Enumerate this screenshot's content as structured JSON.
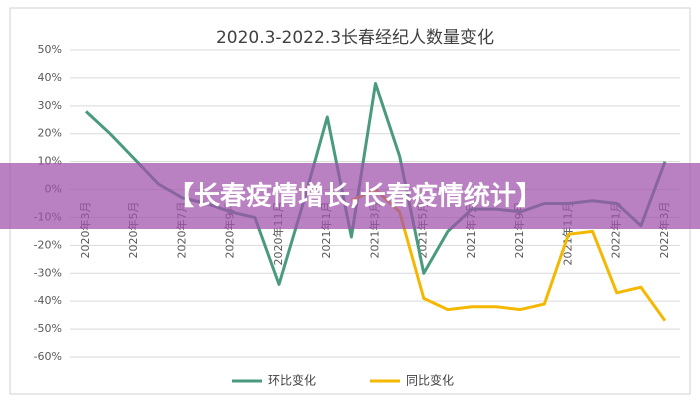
{
  "chart_data": {
    "type": "line",
    "title": "2020.3-2022.3长春经纪人数量变化",
    "categories": [
      "2020年3月",
      null,
      "2020年5月",
      null,
      "2020年7月",
      null,
      "2020年9月",
      null,
      "2020年11月",
      null,
      "2021年1月",
      null,
      "2021年3月",
      null,
      "2021年5月",
      null,
      "2021年7月",
      null,
      "2021年9月",
      null,
      "2021年11月",
      null,
      "2022年1月",
      null,
      "2022年3月"
    ],
    "series": [
      {
        "name": "环比变化",
        "color": "#4a9a7e",
        "values": [
          28,
          20,
          11,
          2,
          -3,
          -5,
          -8,
          -10,
          -34,
          -5,
          26,
          -17,
          38,
          12,
          -30,
          -15,
          -7,
          -7,
          -8,
          -5,
          -5,
          -4,
          -5,
          -13,
          10
        ]
      },
      {
        "name": "同比变化",
        "color": "#f5b800",
        "values": [
          null,
          null,
          null,
          null,
          null,
          null,
          null,
          null,
          null,
          null,
          null,
          -4,
          0,
          -8,
          -39,
          -43,
          -42,
          -42,
          -43,
          -41,
          -16,
          -15,
          -37,
          -35,
          -47
        ]
      }
    ],
    "ylim": [
      -60,
      50
    ],
    "yticks": [
      {
        "value": -60,
        "label": "-60%"
      },
      {
        "value": -50,
        "label": "-50%"
      },
      {
        "value": -40,
        "label": "-40%"
      },
      {
        "value": -30,
        "label": "-30%"
      },
      {
        "value": -20,
        "label": "-20%"
      },
      {
        "value": -10,
        "label": "-10%"
      },
      {
        "value": 0,
        "label": "0%"
      },
      {
        "value": 10,
        "label": "10%"
      },
      {
        "value": 20,
        "label": "20%"
      },
      {
        "value": 30,
        "label": "30%"
      },
      {
        "value": 40,
        "label": "40%"
      },
      {
        "value": 50,
        "label": "50%"
      }
    ],
    "grid": true,
    "legend": "bottom"
  },
  "banner": {
    "text": "【长春疫情增长,长春疫情统计】"
  }
}
